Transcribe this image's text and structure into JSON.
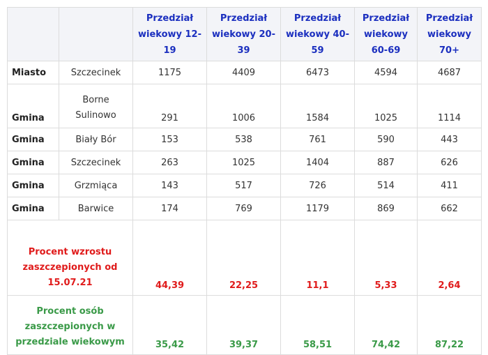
{
  "headers": [
    "Przedział wiekowy 12-19",
    "Przedział wiekowy 20-39",
    "Przedział wiekowy 40-59",
    "Przedział wiekowy 60-69",
    "Przedział wiekowy 70+"
  ],
  "rows": [
    {
      "type": "Miasto",
      "name": "Szczecinek",
      "values": [
        "1175",
        "4409",
        "6473",
        "4594",
        "4687"
      ]
    },
    {
      "type": "Gmina",
      "name": "Borne Sulinowo",
      "values": [
        "291",
        "1006",
        "1584",
        "1025",
        "1114"
      ]
    },
    {
      "type": "Gmina",
      "name": "Biały Bór",
      "values": [
        "153",
        "538",
        "761",
        "590",
        "443"
      ]
    },
    {
      "type": "Gmina",
      "name": "Szczecinek",
      "values": [
        "263",
        "1025",
        "1404",
        "887",
        "626"
      ]
    },
    {
      "type": "Gmina",
      "name": "Grzmiąca",
      "values": [
        "143",
        "517",
        "726",
        "514",
        "411"
      ]
    },
    {
      "type": "Gmina",
      "name": "Barwice",
      "values": [
        "174",
        "769",
        "1179",
        "869",
        "662"
      ]
    }
  ],
  "growth": {
    "label": "Procent wzrostu zaszczepionych od 15.07.21",
    "values": [
      "44,39",
      "22,25",
      "11,1",
      "5,33",
      "2,64"
    ],
    "color": "#e01b1b"
  },
  "vaccinated": {
    "label": "Procent osób zaszczepionych w przedziale wiekowym",
    "values": [
      "35,42",
      "39,37",
      "58,51",
      "74,42",
      "87,22"
    ],
    "color": "#3a9a48"
  },
  "colors": {
    "header_text": "#1b2fbf",
    "header_bg": "#f3f4f8",
    "border": "#dcdcdc"
  }
}
